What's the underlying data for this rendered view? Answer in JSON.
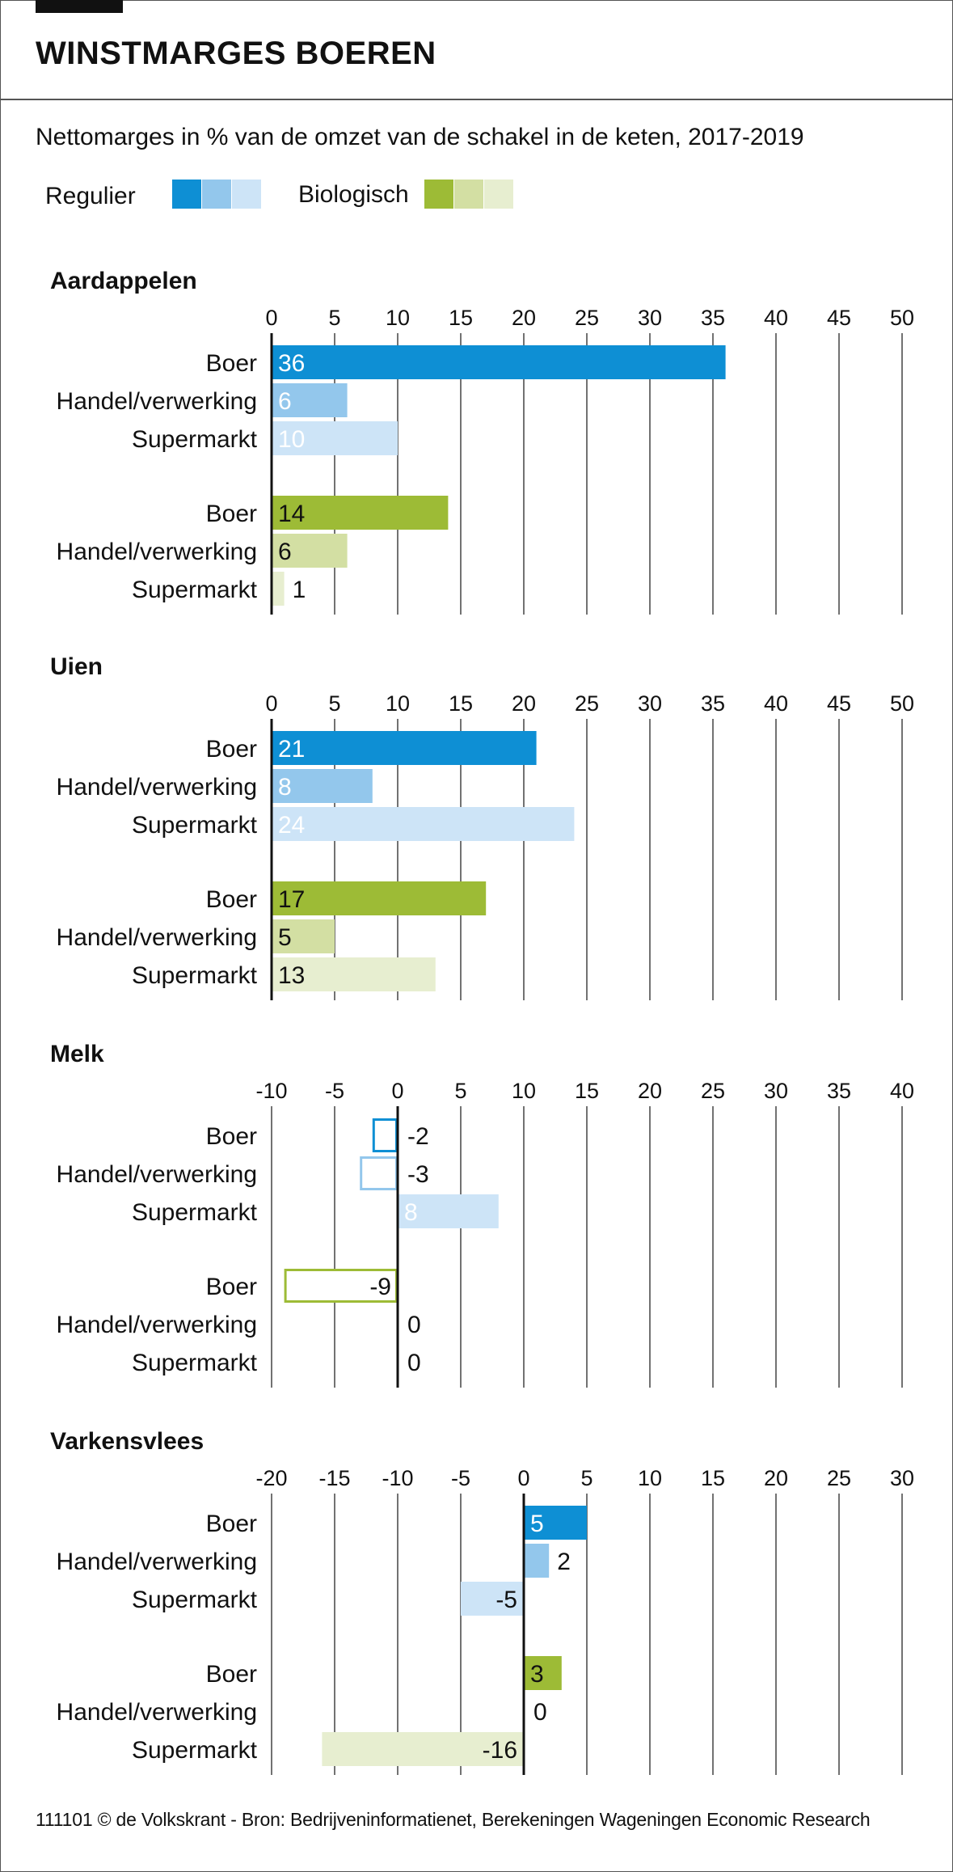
{
  "title": "WINSTMARGES BOEREN",
  "subtitle": "Nettomarges in %  van de omzet van de schakel in de keten, 2017-2019",
  "legend": {
    "regular_label": "Regulier",
    "organic_label": "Biologisch",
    "regular_colors": [
      "#0e8fd4",
      "#93c7ec",
      "#cde4f7"
    ],
    "organic_colors": [
      "#9dbb36",
      "#d3dfa3",
      "#e7eed0"
    ]
  },
  "footer": "111101 © de Volkskrant -  Bron: Bedrijveninformatienet, Berekeningen Wageningen Economic Research",
  "chart_data": [
    {
      "type": "bar",
      "title": "Aardappelen",
      "categories": [
        "Boer",
        "Handel/verwerking",
        "Supermarkt"
      ],
      "series": [
        {
          "name": "Regulier",
          "values": [
            36,
            6,
            10
          ]
        },
        {
          "name": "Biologisch",
          "values": [
            14,
            6,
            1
          ]
        }
      ],
      "ticks": [
        0,
        5,
        10,
        15,
        20,
        25,
        30,
        35,
        40,
        45,
        50
      ],
      "xlim": [
        0,
        50
      ]
    },
    {
      "type": "bar",
      "title": "Uien",
      "categories": [
        "Boer",
        "Handel/verwerking",
        "Supermarkt"
      ],
      "series": [
        {
          "name": "Regulier",
          "values": [
            21,
            8,
            24
          ]
        },
        {
          "name": "Biologisch",
          "values": [
            17,
            5,
            13
          ]
        }
      ],
      "ticks": [
        0,
        5,
        10,
        15,
        20,
        25,
        30,
        35,
        40,
        45,
        50
      ],
      "xlim": [
        0,
        50
      ]
    },
    {
      "type": "bar",
      "title": "Melk",
      "categories": [
        "Boer",
        "Handel/verwerking",
        "Supermarkt"
      ],
      "series": [
        {
          "name": "Regulier",
          "values": [
            -2,
            -3,
            8
          ]
        },
        {
          "name": "Biologisch",
          "values": [
            -9,
            0,
            0
          ]
        }
      ],
      "ticks": [
        -10,
        -5,
        0,
        5,
        10,
        15,
        20,
        25,
        30,
        35,
        40
      ],
      "xlim": [
        -10,
        40
      ]
    },
    {
      "type": "bar",
      "title": "Varkensvlees",
      "categories": [
        "Boer",
        "Handel/verwerking",
        "Supermarkt"
      ],
      "series": [
        {
          "name": "Regulier",
          "values": [
            5,
            2,
            -5
          ]
        },
        {
          "name": "Biologisch",
          "values": [
            3,
            0,
            -16
          ]
        }
      ],
      "ticks": [
        -20,
        -15,
        -10,
        -5,
        0,
        5,
        10,
        15,
        20,
        25,
        30
      ],
      "xlim": [
        -20,
        30
      ]
    }
  ]
}
